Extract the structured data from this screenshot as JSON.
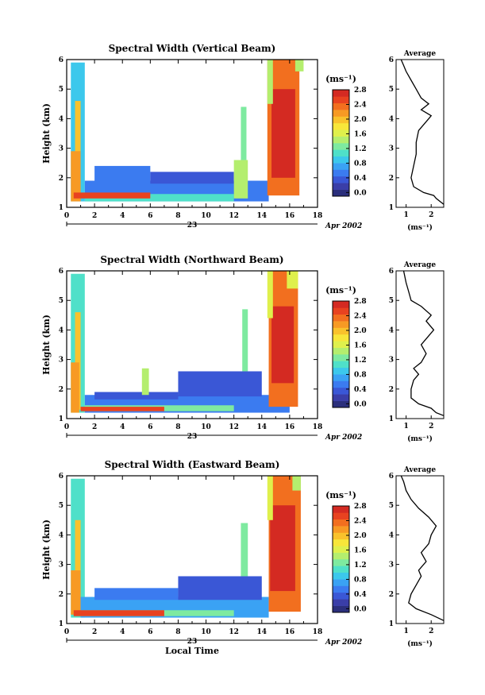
{
  "time_axis": {
    "label": "Local Time",
    "day_label": "23",
    "month_label": "Apr 2002"
  },
  "colorbar": {
    "unit_label": "(ms⁻¹)",
    "ticks": [
      "0.0",
      "0.4",
      "0.8",
      "1.2",
      "1.6",
      "2.0",
      "2.4",
      "2.8"
    ],
    "colors": [
      "#2b2f7c",
      "#3a3ea8",
      "#3a57d6",
      "#3b7bf0",
      "#3aa2f4",
      "#3cc8ec",
      "#4fe0c9",
      "#7eeaa0",
      "#b4ee6e",
      "#dff04c",
      "#f8e63a",
      "#f9c22c",
      "#f79a24",
      "#f26f1f",
      "#e84220",
      "#d42a22"
    ]
  },
  "chart_data": [
    {
      "type": "heatmap",
      "title": "Spectral Width (Vertical Beam)",
      "xlabel": "",
      "ylabel": "Height (km)",
      "xlim": [
        0,
        18
      ],
      "ylim": [
        1,
        6
      ],
      "xticks": [
        0,
        2,
        4,
        6,
        8,
        10,
        12,
        14,
        16,
        18
      ],
      "yticks": [
        1,
        2,
        3,
        4,
        5,
        6
      ],
      "regions": [
        {
          "x0": 0.3,
          "x1": 1.3,
          "y0": 1.2,
          "y1": 5.9,
          "v": 1.0
        },
        {
          "x0": 0.6,
          "x1": 1.0,
          "y0": 1.3,
          "y1": 4.6,
          "v": 2.0
        },
        {
          "x0": 0.3,
          "x1": 1.0,
          "y0": 1.2,
          "y1": 2.9,
          "v": 2.3
        },
        {
          "x0": 1.3,
          "x1": 14.5,
          "y0": 1.2,
          "y1": 1.9,
          "v": 0.7
        },
        {
          "x0": 1.3,
          "x1": 12.0,
          "y0": 1.2,
          "y1": 1.45,
          "v": 1.2
        },
        {
          "x0": 0.5,
          "x1": 6.0,
          "y0": 1.3,
          "y1": 1.5,
          "v": 2.7
        },
        {
          "x0": 2.0,
          "x1": 6.0,
          "y0": 1.85,
          "y1": 2.4,
          "v": 0.6
        },
        {
          "x0": 6.0,
          "x1": 12.0,
          "y0": 1.8,
          "y1": 2.2,
          "v": 0.5
        },
        {
          "x0": 12.0,
          "x1": 13.0,
          "y0": 1.3,
          "y1": 2.6,
          "v": 1.5
        },
        {
          "x0": 12.5,
          "x1": 12.9,
          "y0": 2.6,
          "y1": 4.4,
          "v": 1.4
        },
        {
          "x0": 14.4,
          "x1": 16.7,
          "y0": 1.4,
          "y1": 6.0,
          "v": 2.4
        },
        {
          "x0": 14.7,
          "x1": 16.4,
          "y0": 2.0,
          "y1": 5.0,
          "v": 2.8
        },
        {
          "x0": 14.4,
          "x1": 14.8,
          "y0": 4.5,
          "y1": 6.0,
          "v": 1.6
        },
        {
          "x0": 16.4,
          "x1": 17.0,
          "y0": 5.6,
          "y1": 6.0,
          "v": 1.5
        }
      ],
      "average_panel": {
        "title": "Average",
        "xlabel": "(ms⁻¹)",
        "xlim": [
          0.6,
          2.5
        ],
        "ylim": [
          1,
          6
        ],
        "xticks": [
          1,
          2
        ],
        "yticks": [
          1,
          2,
          3,
          4,
          5,
          6
        ],
        "profile": [
          [
            2.5,
            1.1
          ],
          [
            2.2,
            1.3
          ],
          [
            2.1,
            1.4
          ],
          [
            1.7,
            1.5
          ],
          [
            1.3,
            1.7
          ],
          [
            1.2,
            2.0
          ],
          [
            1.3,
            2.4
          ],
          [
            1.4,
            2.8
          ],
          [
            1.4,
            3.2
          ],
          [
            1.5,
            3.6
          ],
          [
            1.9,
            4.0
          ],
          [
            2.0,
            4.1
          ],
          [
            1.6,
            4.3
          ],
          [
            1.9,
            4.5
          ],
          [
            1.6,
            4.7
          ],
          [
            1.4,
            5.0
          ],
          [
            1.2,
            5.3
          ],
          [
            1.0,
            5.6
          ],
          [
            0.9,
            5.8
          ],
          [
            0.8,
            6.0
          ]
        ]
      }
    },
    {
      "type": "heatmap",
      "title": "Spectral Width (Northward Beam)",
      "xlabel": "",
      "ylabel": "Height (km)",
      "xlim": [
        0,
        18
      ],
      "ylim": [
        1,
        6
      ],
      "xticks": [
        0,
        2,
        4,
        6,
        8,
        10,
        12,
        14,
        16,
        18
      ],
      "yticks": [
        1,
        2,
        3,
        4,
        5,
        6
      ],
      "regions": [
        {
          "x0": 0.3,
          "x1": 1.3,
          "y0": 1.2,
          "y1": 5.9,
          "v": 1.1
        },
        {
          "x0": 0.6,
          "x1": 1.0,
          "y0": 1.3,
          "y1": 4.6,
          "v": 2.0
        },
        {
          "x0": 0.3,
          "x1": 0.9,
          "y0": 1.2,
          "y1": 2.9,
          "v": 2.3
        },
        {
          "x0": 1.3,
          "x1": 16.0,
          "y0": 1.2,
          "y1": 1.8,
          "v": 0.6
        },
        {
          "x0": 1.3,
          "x1": 12.0,
          "y0": 1.25,
          "y1": 1.45,
          "v": 1.3
        },
        {
          "x0": 1.0,
          "x1": 7.0,
          "y0": 1.25,
          "y1": 1.4,
          "v": 2.6
        },
        {
          "x0": 2.0,
          "x1": 8.0,
          "y0": 1.65,
          "y1": 1.9,
          "v": 0.5
        },
        {
          "x0": 8.0,
          "x1": 14.0,
          "y0": 1.75,
          "y1": 2.6,
          "v": 0.5
        },
        {
          "x0": 5.4,
          "x1": 5.9,
          "y0": 1.8,
          "y1": 2.7,
          "v": 1.6
        },
        {
          "x0": 12.6,
          "x1": 13.0,
          "y0": 2.6,
          "y1": 4.7,
          "v": 1.3
        },
        {
          "x0": 14.5,
          "x1": 16.6,
          "y0": 1.4,
          "y1": 6.0,
          "v": 2.4
        },
        {
          "x0": 14.7,
          "x1": 16.3,
          "y0": 2.2,
          "y1": 4.8,
          "v": 2.8
        },
        {
          "x0": 14.4,
          "x1": 14.8,
          "y0": 4.4,
          "y1": 6.0,
          "v": 1.8
        },
        {
          "x0": 15.8,
          "x1": 16.6,
          "y0": 5.4,
          "y1": 6.0,
          "v": 1.7
        }
      ],
      "average_panel": {
        "title": "Average",
        "xlabel": "(ms⁻¹)",
        "xlim": [
          0.6,
          2.5
        ],
        "ylim": [
          1,
          6
        ],
        "xticks": [
          1,
          2
        ],
        "yticks": [
          1,
          2,
          3,
          4,
          5,
          6
        ],
        "profile": [
          [
            2.5,
            1.1
          ],
          [
            2.2,
            1.2
          ],
          [
            2.0,
            1.35
          ],
          [
            1.5,
            1.5
          ],
          [
            1.2,
            1.7
          ],
          [
            1.2,
            2.0
          ],
          [
            1.3,
            2.3
          ],
          [
            1.5,
            2.5
          ],
          [
            1.3,
            2.7
          ],
          [
            1.6,
            2.9
          ],
          [
            1.8,
            3.2
          ],
          [
            1.6,
            3.5
          ],
          [
            1.9,
            3.8
          ],
          [
            2.1,
            4.0
          ],
          [
            1.8,
            4.3
          ],
          [
            2.0,
            4.5
          ],
          [
            1.6,
            4.8
          ],
          [
            1.2,
            5.0
          ],
          [
            1.1,
            5.3
          ],
          [
            1.0,
            5.6
          ],
          [
            0.9,
            6.0
          ]
        ]
      }
    },
    {
      "type": "heatmap",
      "title": "Spectral Width (Eastward Beam)",
      "xlabel": "Local Time",
      "ylabel": "Height (km)",
      "xlim": [
        0,
        18
      ],
      "ylim": [
        1,
        6
      ],
      "xticks": [
        0,
        2,
        4,
        6,
        8,
        10,
        12,
        14,
        16,
        18
      ],
      "yticks": [
        1,
        2,
        3,
        4,
        5,
        6
      ],
      "regions": [
        {
          "x0": 0.3,
          "x1": 1.3,
          "y0": 1.2,
          "y1": 5.9,
          "v": 1.1
        },
        {
          "x0": 0.6,
          "x1": 1.0,
          "y0": 1.3,
          "y1": 4.5,
          "v": 2.0
        },
        {
          "x0": 0.3,
          "x1": 1.0,
          "y0": 1.3,
          "y1": 2.8,
          "v": 2.3
        },
        {
          "x0": 1.0,
          "x1": 14.5,
          "y0": 1.2,
          "y1": 1.9,
          "v": 0.8
        },
        {
          "x0": 1.0,
          "x1": 12.0,
          "y0": 1.25,
          "y1": 1.45,
          "v": 1.3
        },
        {
          "x0": 0.5,
          "x1": 7.0,
          "y0": 1.25,
          "y1": 1.45,
          "v": 2.7
        },
        {
          "x0": 2.0,
          "x1": 8.0,
          "y0": 1.8,
          "y1": 2.2,
          "v": 0.6
        },
        {
          "x0": 8.0,
          "x1": 14.0,
          "y0": 1.8,
          "y1": 2.6,
          "v": 0.5
        },
        {
          "x0": 12.5,
          "x1": 13.0,
          "y0": 2.6,
          "y1": 4.4,
          "v": 1.3
        },
        {
          "x0": 14.5,
          "x1": 16.8,
          "y0": 1.4,
          "y1": 6.0,
          "v": 2.4
        },
        {
          "x0": 14.6,
          "x1": 16.4,
          "y0": 2.1,
          "y1": 5.0,
          "v": 2.8
        },
        {
          "x0": 14.4,
          "x1": 14.8,
          "y0": 4.5,
          "y1": 6.0,
          "v": 1.7
        },
        {
          "x0": 16.2,
          "x1": 16.8,
          "y0": 5.5,
          "y1": 6.0,
          "v": 1.6
        }
      ],
      "average_panel": {
        "title": "Average",
        "xlabel": "(ms⁻¹)",
        "xlim": [
          0.6,
          2.5
        ],
        "ylim": [
          1,
          6
        ],
        "xticks": [
          1,
          2
        ],
        "yticks": [
          1,
          2,
          3,
          4,
          5,
          6
        ],
        "profile": [
          [
            2.5,
            1.1
          ],
          [
            2.0,
            1.3
          ],
          [
            1.4,
            1.5
          ],
          [
            1.1,
            1.7
          ],
          [
            1.2,
            2.0
          ],
          [
            1.4,
            2.3
          ],
          [
            1.6,
            2.6
          ],
          [
            1.5,
            2.8
          ],
          [
            1.8,
            3.1
          ],
          [
            1.6,
            3.4
          ],
          [
            1.9,
            3.7
          ],
          [
            2.0,
            4.0
          ],
          [
            2.2,
            4.3
          ],
          [
            1.9,
            4.6
          ],
          [
            1.5,
            4.9
          ],
          [
            1.2,
            5.2
          ],
          [
            1.0,
            5.5
          ],
          [
            0.9,
            5.8
          ],
          [
            0.8,
            6.0
          ]
        ]
      }
    }
  ]
}
